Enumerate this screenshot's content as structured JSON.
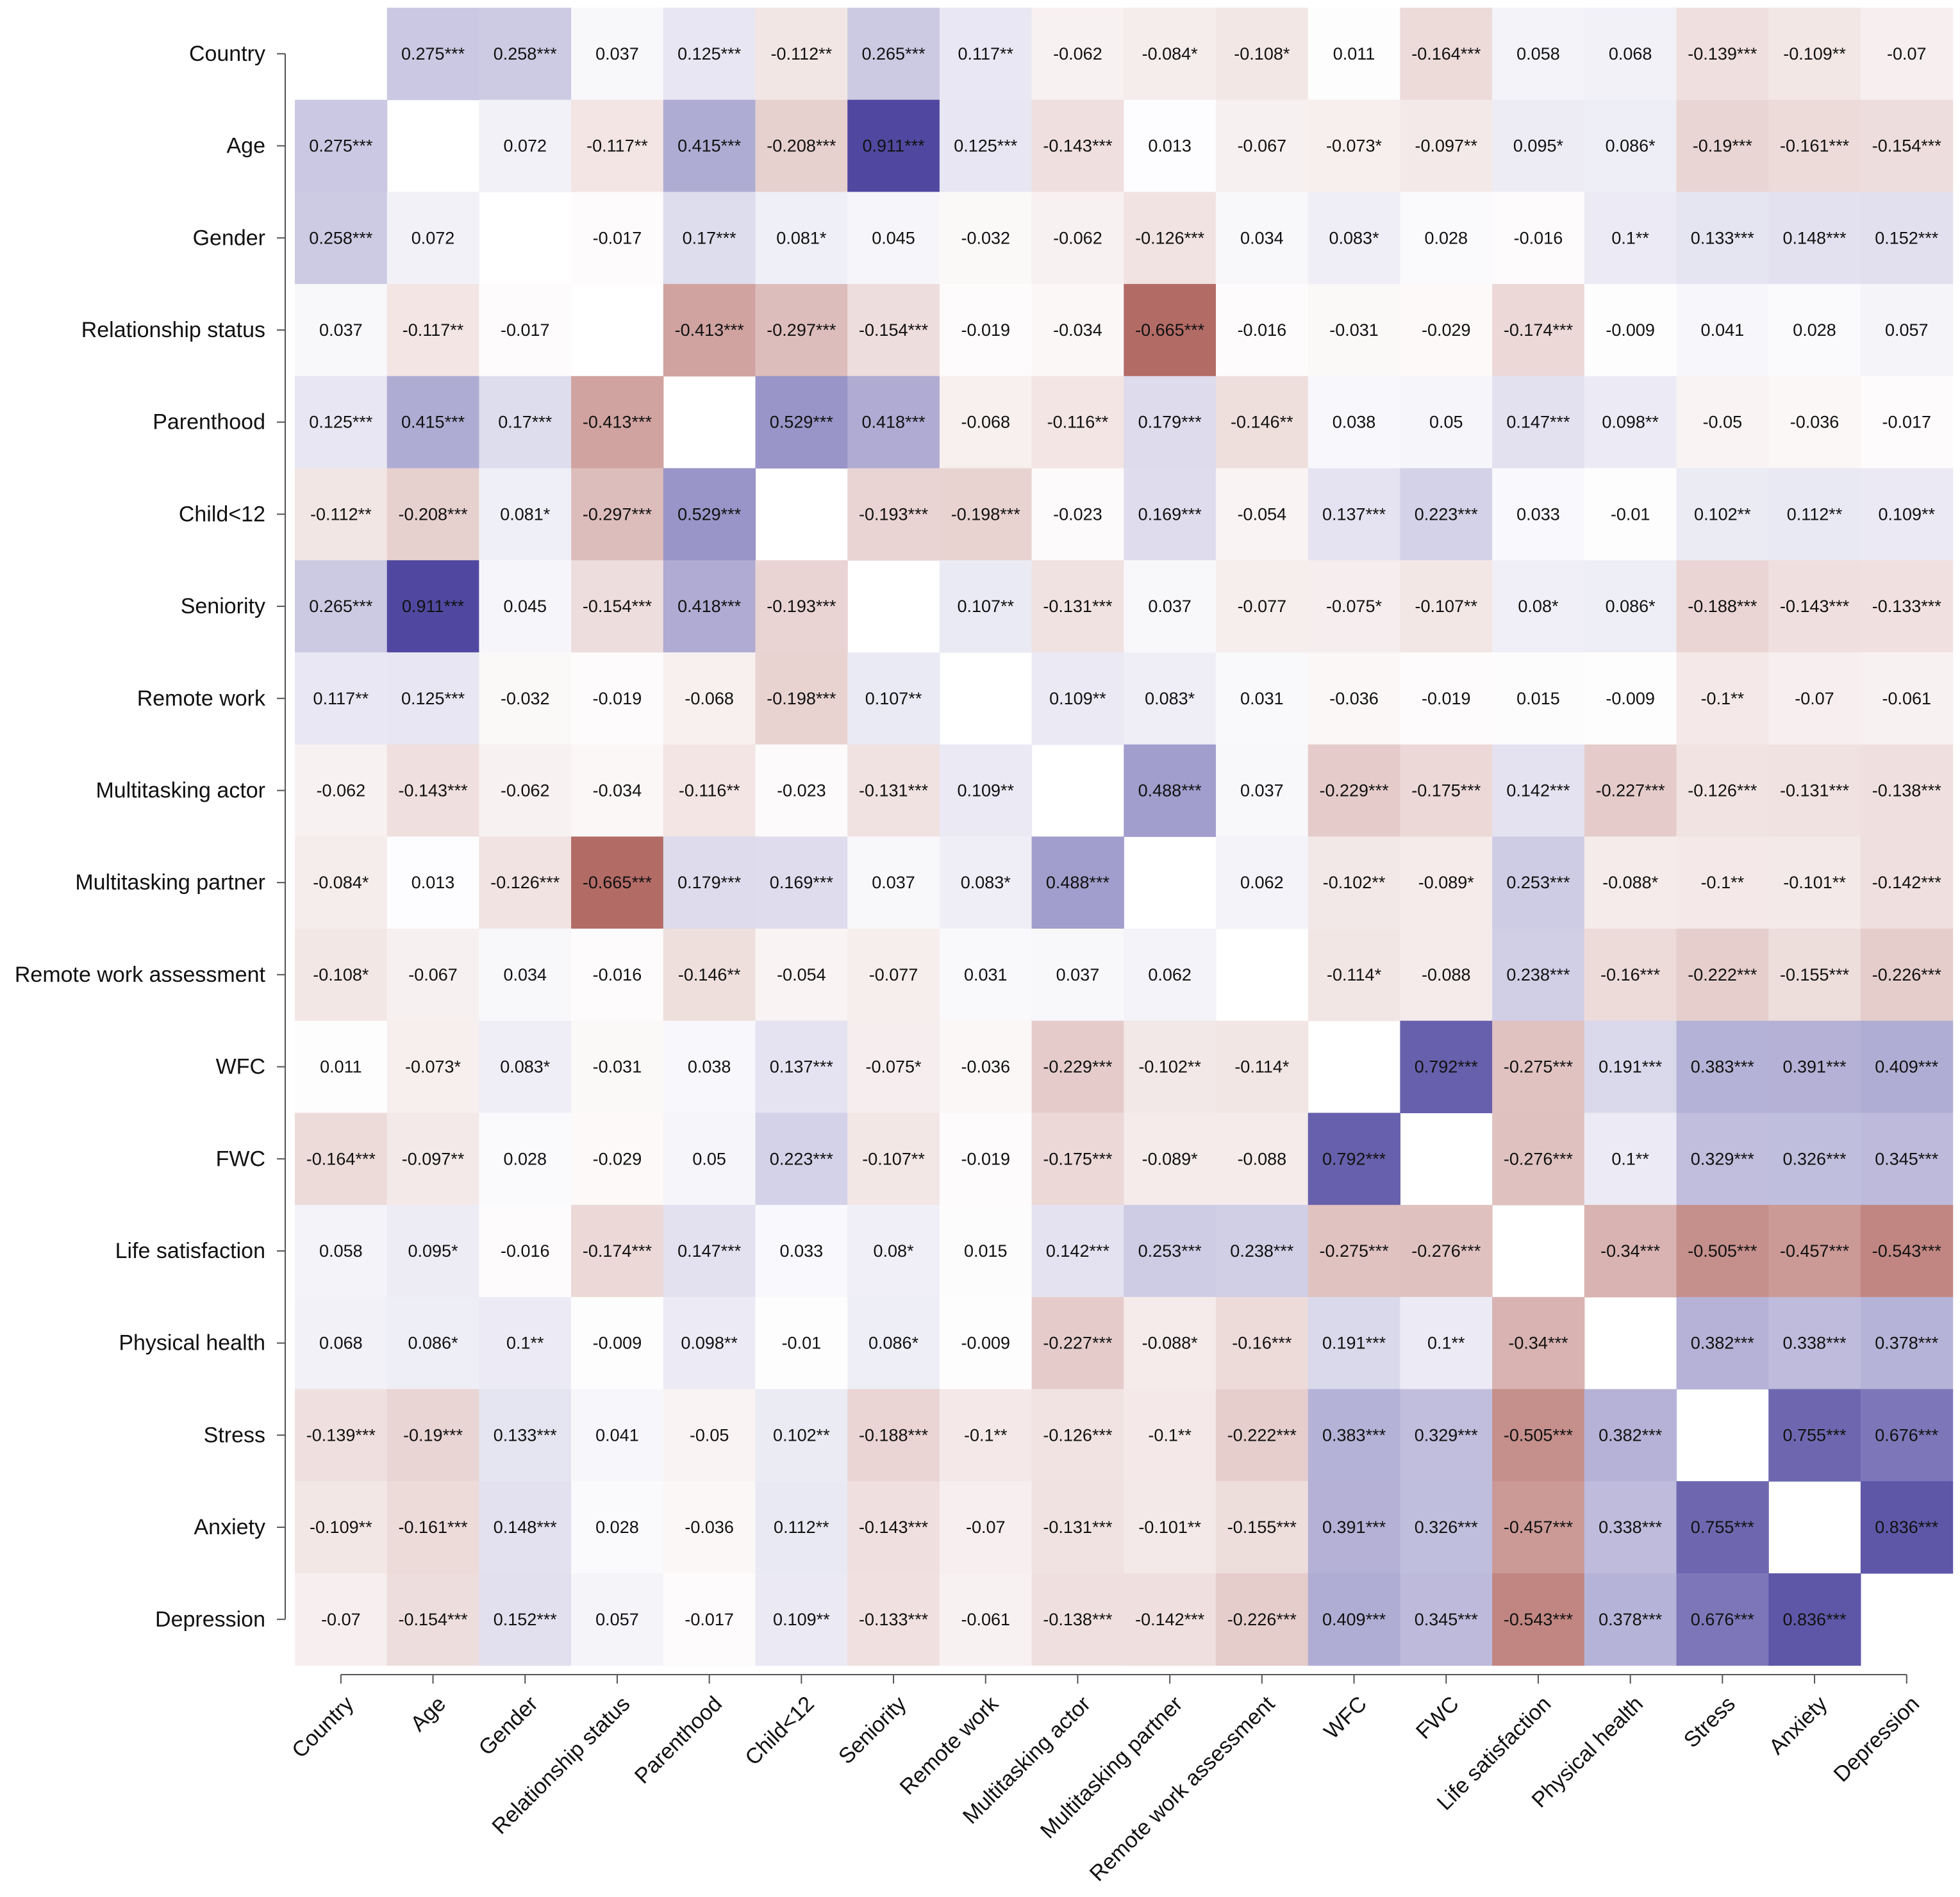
{
  "chart_data": {
    "type": "heatmap",
    "title": "",
    "xlabel": "",
    "ylabel": "",
    "color_scale": {
      "positive": "#5048a0",
      "negative": "#b36b66",
      "zero": "#ffffff"
    },
    "variables": [
      "Country",
      "Age",
      "Gender",
      "Relationship status",
      "Parenthood",
      "Child<12",
      "Seniority",
      "Remote work",
      "Multitasking actor",
      "Multitasking partner",
      "Remote work assessment",
      "WFC",
      "FWC",
      "Life satisfaction",
      "Physical health",
      "Stress",
      "Anxiety",
      "Depression"
    ],
    "cells": [
      [
        "",
        "0.275***",
        "0.258***",
        "0.037",
        "0.125***",
        "-0.112**",
        "0.265***",
        "0.117**",
        "-0.062",
        "-0.084*",
        "-0.108*",
        "0.011",
        "-0.164***",
        "0.058",
        "0.068",
        "-0.139***",
        "-0.109**",
        "-0.07"
      ],
      [
        "0.275***",
        "",
        "0.072",
        "-0.117**",
        "0.415***",
        "-0.208***",
        "0.911***",
        "0.125***",
        "-0.143***",
        "0.013",
        "-0.067",
        "-0.073*",
        "-0.097**",
        "0.095*",
        "0.086*",
        "-0.19***",
        "-0.161***",
        "-0.154***"
      ],
      [
        "0.258***",
        "0.072",
        "",
        "-0.017",
        "0.17***",
        "0.081*",
        "0.045",
        "-0.032",
        "-0.062",
        "-0.126***",
        "0.034",
        "0.083*",
        "0.028",
        "-0.016",
        "0.1**",
        "0.133***",
        "0.148***",
        "0.152***"
      ],
      [
        "0.037",
        "-0.117**",
        "-0.017",
        "",
        "-0.413***",
        "-0.297***",
        "-0.154***",
        "-0.019",
        "-0.034",
        "-0.665***",
        "-0.016",
        "-0.031",
        "-0.029",
        "-0.174***",
        "-0.009",
        "0.041",
        "0.028",
        "0.057"
      ],
      [
        "0.125***",
        "0.415***",
        "0.17***",
        "-0.413***",
        "",
        "0.529***",
        "0.418***",
        "-0.068",
        "-0.116**",
        "0.179***",
        "-0.146**",
        "0.038",
        "0.05",
        "0.147***",
        "0.098**",
        "-0.05",
        "-0.036",
        "-0.017"
      ],
      [
        "-0.112**",
        "-0.208***",
        "0.081*",
        "-0.297***",
        "0.529***",
        "",
        "-0.193***",
        "-0.198***",
        "-0.023",
        "0.169***",
        "-0.054",
        "0.137***",
        "0.223***",
        "0.033",
        "-0.01",
        "0.102**",
        "0.112**",
        "0.109**"
      ],
      [
        "0.265***",
        "0.911***",
        "0.045",
        "-0.154***",
        "0.418***",
        "-0.193***",
        "",
        "0.107**",
        "-0.131***",
        "0.037",
        "-0.077",
        "-0.075*",
        "-0.107**",
        "0.08*",
        "0.086*",
        "-0.188***",
        "-0.143***",
        "-0.133***"
      ],
      [
        "0.117**",
        "0.125***",
        "-0.032",
        "-0.019",
        "-0.068",
        "-0.198***",
        "0.107**",
        "",
        "0.109**",
        "0.083*",
        "0.031",
        "-0.036",
        "-0.019",
        "0.015",
        "-0.009",
        "-0.1**",
        "-0.07",
        "-0.061"
      ],
      [
        "-0.062",
        "-0.143***",
        "-0.062",
        "-0.034",
        "-0.116**",
        "-0.023",
        "-0.131***",
        "0.109**",
        "",
        "0.488***",
        "0.037",
        "-0.229***",
        "-0.175***",
        "0.142***",
        "-0.227***",
        "-0.126***",
        "-0.131***",
        "-0.138***"
      ],
      [
        "-0.084*",
        "0.013",
        "-0.126***",
        "-0.665***",
        "0.179***",
        "0.169***",
        "0.037",
        "0.083*",
        "0.488***",
        "",
        "0.062",
        "-0.102**",
        "-0.089*",
        "0.253***",
        "-0.088*",
        "-0.1**",
        "-0.101**",
        "-0.142***"
      ],
      [
        "-0.108*",
        "-0.067",
        "0.034",
        "-0.016",
        "-0.146**",
        "-0.054",
        "-0.077",
        "0.031",
        "0.037",
        "0.062",
        "",
        "-0.114*",
        "-0.088",
        "0.238***",
        "-0.16***",
        "-0.222***",
        "-0.155***",
        "-0.226***"
      ],
      [
        "0.011",
        "-0.073*",
        "0.083*",
        "-0.031",
        "0.038",
        "0.137***",
        "-0.075*",
        "-0.036",
        "-0.229***",
        "-0.102**",
        "-0.114*",
        "",
        "0.792***",
        "-0.275***",
        "0.191***",
        "0.383***",
        "0.391***",
        "0.409***"
      ],
      [
        "-0.164***",
        "-0.097**",
        "0.028",
        "-0.029",
        "0.05",
        "0.223***",
        "-0.107**",
        "-0.019",
        "-0.175***",
        "-0.089*",
        "-0.088",
        "0.792***",
        "",
        "-0.276***",
        "0.1**",
        "0.329***",
        "0.326***",
        "0.345***"
      ],
      [
        "0.058",
        "0.095*",
        "-0.016",
        "-0.174***",
        "0.147***",
        "0.033",
        "0.08*",
        "0.015",
        "0.142***",
        "0.253***",
        "0.238***",
        "-0.275***",
        "-0.276***",
        "",
        "-0.34***",
        "-0.505***",
        "-0.457***",
        "-0.543***"
      ],
      [
        "0.068",
        "0.086*",
        "0.1**",
        "-0.009",
        "0.098**",
        "-0.01",
        "0.086*",
        "-0.009",
        "-0.227***",
        "-0.088*",
        "-0.16***",
        "0.191***",
        "0.1**",
        "-0.34***",
        "",
        "0.382***",
        "0.338***",
        "0.378***"
      ],
      [
        "-0.139***",
        "-0.19***",
        "0.133***",
        "0.041",
        "-0.05",
        "0.102**",
        "-0.188***",
        "-0.1**",
        "-0.126***",
        "-0.1**",
        "-0.222***",
        "0.383***",
        "0.329***",
        "-0.505***",
        "0.382***",
        "",
        "0.755***",
        "0.676***"
      ],
      [
        "-0.109**",
        "-0.161***",
        "0.148***",
        "0.028",
        "-0.036",
        "0.112**",
        "-0.143***",
        "-0.07",
        "-0.131***",
        "-0.101**",
        "-0.155***",
        "0.391***",
        "0.326***",
        "-0.457***",
        "0.338***",
        "0.755***",
        "",
        "0.836***"
      ],
      [
        "-0.07",
        "-0.154***",
        "0.152***",
        "0.057",
        "-0.017",
        "0.109**",
        "-0.133***",
        "-0.061",
        "-0.138***",
        "-0.142***",
        "-0.226***",
        "0.409***",
        "0.345***",
        "-0.543***",
        "0.378***",
        "0.676***",
        "0.836***",
        ""
      ]
    ]
  }
}
